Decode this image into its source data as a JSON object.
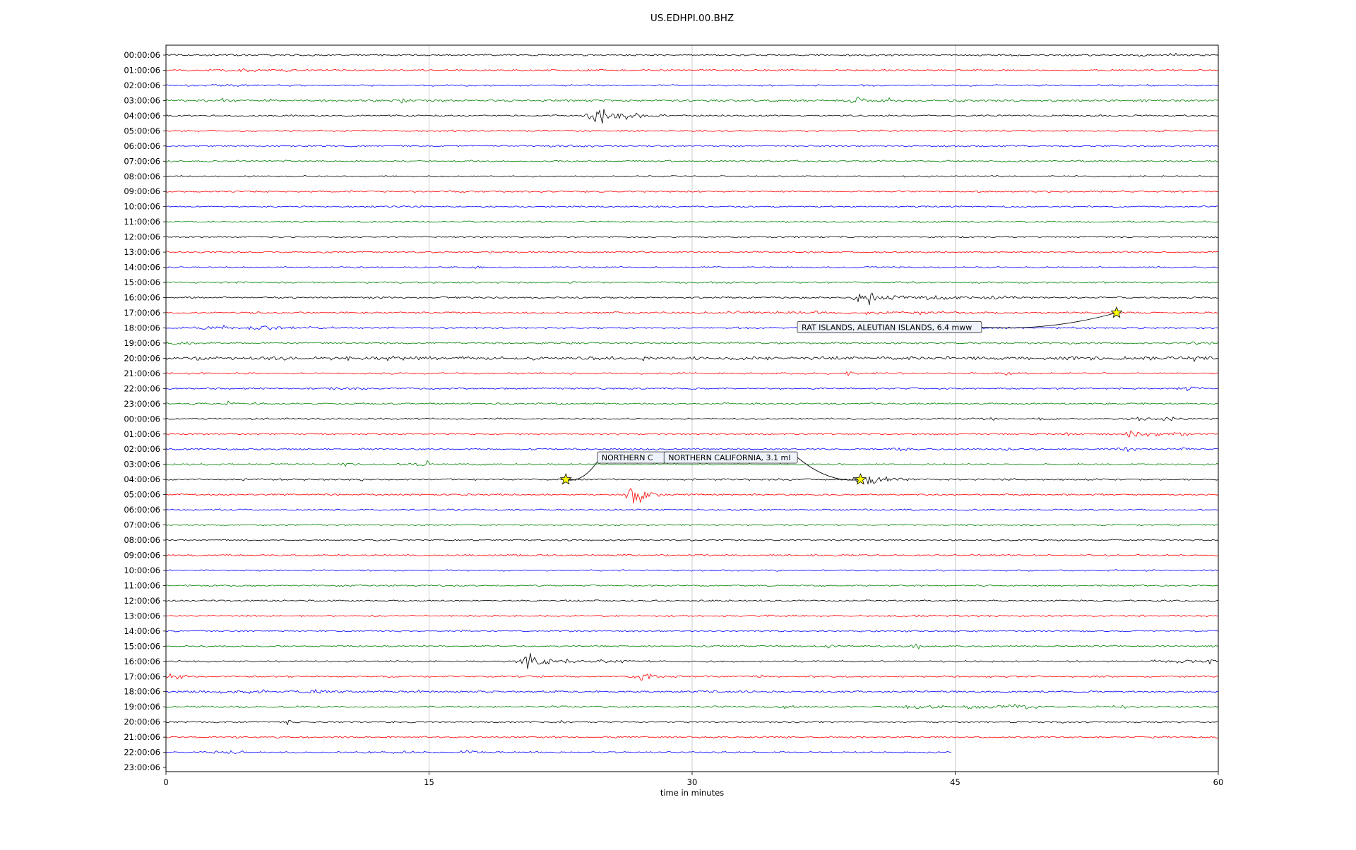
{
  "title": "US.EDHPI.00.BHZ",
  "xlabel": "time in minutes",
  "chart_data": {
    "type": "line",
    "subtype": "helicorder-dayplot",
    "station": "US.EDHPI.00.BHZ",
    "x_range": [
      0,
      60
    ],
    "x_ticks": [
      0,
      15,
      30,
      45,
      60
    ],
    "grid_minutes": [
      15,
      30,
      45
    ],
    "color_cycle": [
      "#000000",
      "#ff0000",
      "#0000ff",
      "#008000"
    ],
    "grid_color": "#c0c0c0",
    "star_color": "#ffff00",
    "rows": [
      {
        "label": "00:00:06",
        "color": "#000000",
        "noise": 1.0,
        "events": [
          [
            57.5,
            2.5,
            0.3,
            "s"
          ],
          [
            55.8,
            1.8,
            0.3,
            "s"
          ]
        ]
      },
      {
        "label": "01:00:06",
        "color": "#ff0000",
        "noise": 1.0,
        "events": [
          [
            4.5,
            2.0,
            1.5,
            "b"
          ],
          [
            7.0,
            1.5,
            0.8,
            "b"
          ]
        ]
      },
      {
        "label": "02:00:06",
        "color": "#0000ff",
        "noise": 1.0,
        "events": [
          [
            3.5,
            1.8,
            1.2,
            "b"
          ]
        ]
      },
      {
        "label": "03:00:06",
        "color": "#008000",
        "noise": 1.3,
        "events": [
          [
            3.4,
            2.5,
            0.3,
            "s"
          ],
          [
            5.9,
            2.5,
            0.3,
            "s"
          ],
          [
            13.7,
            4.0,
            0.25,
            "s"
          ],
          [
            25.0,
            2.0,
            0.5,
            "b"
          ],
          [
            39.4,
            5.0,
            0.3,
            "s"
          ],
          [
            41.5,
            2.5,
            0.8,
            "b"
          ],
          [
            50.0,
            2.0,
            0.4,
            "s"
          ],
          [
            56.0,
            1.8,
            0.3,
            "s"
          ]
        ]
      },
      {
        "label": "04:00:06",
        "color": "#000000",
        "noise": 1.0,
        "events": [
          [
            24.6,
            12.0,
            0.4,
            "s"
          ],
          [
            25.3,
            6.0,
            0.9,
            "b"
          ],
          [
            26.5,
            2.5,
            1.5,
            "b"
          ]
        ]
      },
      {
        "label": "05:00:06",
        "color": "#ff0000",
        "noise": 1.0,
        "events": []
      },
      {
        "label": "06:00:06",
        "color": "#0000ff",
        "noise": 0.95,
        "events": [
          [
            23.5,
            1.5,
            1.0,
            "b"
          ]
        ]
      },
      {
        "label": "07:00:06",
        "color": "#008000",
        "noise": 1.0,
        "events": []
      },
      {
        "label": "08:00:06",
        "color": "#000000",
        "noise": 0.9,
        "events": []
      },
      {
        "label": "09:00:06",
        "color": "#ff0000",
        "noise": 1.0,
        "events": []
      },
      {
        "label": "10:00:06",
        "color": "#0000ff",
        "noise": 0.9,
        "events": []
      },
      {
        "label": "11:00:06",
        "color": "#008000",
        "noise": 0.95,
        "events": []
      },
      {
        "label": "12:00:06",
        "color": "#000000",
        "noise": 0.9,
        "events": []
      },
      {
        "label": "13:00:06",
        "color": "#ff0000",
        "noise": 1.0,
        "events": []
      },
      {
        "label": "14:00:06",
        "color": "#0000ff",
        "noise": 0.9,
        "events": [
          [
            17.8,
            3.0,
            0.15,
            "s"
          ]
        ]
      },
      {
        "label": "15:00:06",
        "color": "#008000",
        "noise": 1.0,
        "events": []
      },
      {
        "label": "16:00:06",
        "color": "#000000",
        "noise": 1.0,
        "events": [
          [
            39.9,
            12.0,
            0.35,
            "s"
          ],
          [
            41.2,
            4.0,
            1.2,
            "b"
          ],
          [
            44.0,
            2.2,
            2.5,
            "b"
          ],
          [
            48.0,
            1.8,
            2.0,
            "b"
          ]
        ]
      },
      {
        "label": "17:00:06",
        "color": "#ff0000",
        "noise": 1.05,
        "events": [
          [
            33.5,
            2.0,
            1.5,
            "b"
          ],
          [
            37.0,
            2.2,
            1.5,
            "b"
          ],
          [
            40.5,
            2.0,
            1.0,
            "b"
          ],
          [
            43.5,
            2.2,
            1.5,
            "b"
          ]
        ]
      },
      {
        "label": "18:00:06",
        "color": "#0000ff",
        "noise": 1.1,
        "events": [
          [
            3.5,
            2.8,
            1.5,
            "b"
          ],
          [
            6.5,
            2.2,
            1.2,
            "b"
          ],
          [
            9.0,
            1.8,
            0.8,
            "b"
          ]
        ]
      },
      {
        "label": "19:00:06",
        "color": "#008000",
        "noise": 1.05,
        "events": [
          [
            0.8,
            2.0,
            1.0,
            "b"
          ],
          [
            59.0,
            1.8,
            0.5,
            "b"
          ]
        ]
      },
      {
        "label": "20:00:06",
        "color": "#000000",
        "noise": 1.9,
        "events": [
          [
            1.0,
            2.5,
            1.0,
            "b"
          ],
          [
            11.5,
            2.5,
            1.5,
            "b"
          ],
          [
            14.0,
            2.0,
            1.0,
            "b"
          ],
          [
            26.5,
            2.0,
            0.8,
            "b"
          ],
          [
            35.5,
            2.2,
            0.4,
            "s"
          ],
          [
            44.0,
            1.8,
            0.8,
            "b"
          ],
          [
            52.0,
            2.0,
            0.8,
            "b"
          ],
          [
            58.5,
            2.5,
            0.8,
            "b"
          ]
        ]
      },
      {
        "label": "21:00:06",
        "color": "#ff0000",
        "noise": 1.0,
        "events": [
          [
            39.0,
            3.0,
            0.3,
            "s"
          ],
          [
            48.0,
            2.2,
            0.3,
            "s"
          ]
        ]
      },
      {
        "label": "22:00:06",
        "color": "#0000ff",
        "noise": 1.0,
        "events": [
          [
            10.0,
            2.0,
            1.0,
            "b"
          ],
          [
            58.5,
            3.0,
            0.7,
            "b"
          ]
        ]
      },
      {
        "label": "23:00:06",
        "color": "#008000",
        "noise": 1.0,
        "events": [
          [
            3.5,
            3.0,
            0.3,
            "s"
          ],
          [
            5.5,
            2.5,
            0.3,
            "s"
          ]
        ]
      },
      {
        "label": "00:00:06",
        "color": "#000000",
        "noise": 1.0,
        "events": [
          [
            47.0,
            2.5,
            0.3,
            "s"
          ],
          [
            50.0,
            2.0,
            0.3,
            "s"
          ],
          [
            55.5,
            3.0,
            0.5,
            "b"
          ],
          [
            57.0,
            2.5,
            0.4,
            "s"
          ]
        ]
      },
      {
        "label": "01:00:06",
        "color": "#ff0000",
        "noise": 1.0,
        "events": [
          [
            51.5,
            2.5,
            0.3,
            "s"
          ],
          [
            55.0,
            5.0,
            0.4,
            "s"
          ],
          [
            56.5,
            3.5,
            0.7,
            "b"
          ],
          [
            58.0,
            2.5,
            0.5,
            "b"
          ]
        ]
      },
      {
        "label": "02:00:06",
        "color": "#0000ff",
        "noise": 1.0,
        "events": [
          [
            42.0,
            3.5,
            0.3,
            "s"
          ],
          [
            46.0,
            2.5,
            0.4,
            "s"
          ],
          [
            48.0,
            3.0,
            0.3,
            "s"
          ],
          [
            55.0,
            3.5,
            0.4,
            "s"
          ],
          [
            58.0,
            2.0,
            0.3,
            "s"
          ]
        ]
      },
      {
        "label": "03:00:06",
        "color": "#008000",
        "noise": 1.0,
        "events": [
          [
            10.3,
            2.0,
            0.3,
            "s"
          ],
          [
            14.8,
            5.5,
            0.35,
            "s"
          ]
        ]
      },
      {
        "label": "04:00:06",
        "color": "#000000",
        "noise": 1.0,
        "events": [
          [
            11.5,
            1.8,
            0.3,
            "s"
          ],
          [
            40.0,
            12.0,
            0.5,
            "s"
          ],
          [
            40.8,
            5.0,
            1.0,
            "b"
          ],
          [
            42.0,
            2.0,
            1.5,
            "b"
          ]
        ]
      },
      {
        "label": "05:00:06",
        "color": "#ff0000",
        "noise": 1.0,
        "events": [
          [
            26.8,
            11.0,
            0.45,
            "s"
          ],
          [
            27.5,
            3.5,
            0.8,
            "b"
          ]
        ]
      },
      {
        "label": "06:00:06",
        "color": "#0000ff",
        "noise": 0.9,
        "events": []
      },
      {
        "label": "07:00:06",
        "color": "#008000",
        "noise": 0.95,
        "events": []
      },
      {
        "label": "08:00:06",
        "color": "#000000",
        "noise": 0.9,
        "events": []
      },
      {
        "label": "09:00:06",
        "color": "#ff0000",
        "noise": 1.0,
        "events": []
      },
      {
        "label": "10:00:06",
        "color": "#0000ff",
        "noise": 0.9,
        "events": []
      },
      {
        "label": "11:00:06",
        "color": "#008000",
        "noise": 0.95,
        "events": []
      },
      {
        "label": "12:00:06",
        "color": "#000000",
        "noise": 0.9,
        "events": []
      },
      {
        "label": "13:00:06",
        "color": "#ff0000",
        "noise": 1.0,
        "events": []
      },
      {
        "label": "14:00:06",
        "color": "#0000ff",
        "noise": 0.9,
        "events": []
      },
      {
        "label": "15:00:06",
        "color": "#008000",
        "noise": 1.0,
        "events": [
          [
            37.8,
            2.8,
            0.3,
            "s"
          ],
          [
            42.7,
            3.2,
            0.35,
            "s"
          ]
        ]
      },
      {
        "label": "16:00:06",
        "color": "#000000",
        "noise": 1.0,
        "events": [
          [
            20.7,
            10.0,
            0.35,
            "s"
          ],
          [
            21.8,
            3.5,
            1.2,
            "b"
          ],
          [
            25.0,
            2.0,
            2.0,
            "b"
          ],
          [
            57.5,
            3.0,
            1.0,
            "b"
          ],
          [
            59.5,
            3.5,
            0.5,
            "b"
          ]
        ]
      },
      {
        "label": "17:00:06",
        "color": "#ff0000",
        "noise": 1.0,
        "events": [
          [
            0.7,
            3.5,
            0.5,
            "b"
          ],
          [
            27.3,
            6.0,
            0.5,
            "b"
          ],
          [
            34.0,
            1.8,
            0.8,
            "b"
          ],
          [
            47.0,
            1.8,
            0.5,
            "b"
          ]
        ]
      },
      {
        "label": "18:00:06",
        "color": "#0000ff",
        "noise": 1.15,
        "events": [
          [
            4.5,
            2.5,
            1.5,
            "b"
          ],
          [
            8.5,
            2.5,
            1.2,
            "b"
          ],
          [
            13.5,
            2.5,
            0.8,
            "b"
          ],
          [
            22.5,
            2.0,
            0.4,
            "s"
          ],
          [
            30.5,
            1.8,
            0.5,
            "b"
          ]
        ]
      },
      {
        "label": "19:00:06",
        "color": "#008000",
        "noise": 1.05,
        "events": [
          [
            35.5,
            2.0,
            0.5,
            "b"
          ],
          [
            43.0,
            2.5,
            1.0,
            "b"
          ],
          [
            46.0,
            2.5,
            0.8,
            "b"
          ],
          [
            48.5,
            4.0,
            1.0,
            "b"
          ],
          [
            54.5,
            2.2,
            0.3,
            "s"
          ]
        ]
      },
      {
        "label": "20:00:06",
        "color": "#000000",
        "noise": 1.0,
        "events": [
          [
            7.0,
            3.5,
            0.25,
            "s"
          ],
          [
            22.5,
            2.5,
            0.35,
            "s"
          ],
          [
            51.5,
            2.2,
            0.3,
            "s"
          ]
        ]
      },
      {
        "label": "21:00:06",
        "color": "#ff0000",
        "noise": 1.0,
        "events": []
      },
      {
        "label": "22:00:06",
        "color": "#0000ff",
        "noise": 1.0,
        "end": 44.8,
        "events": [
          [
            4.0,
            2.2,
            0.8,
            "b"
          ],
          [
            14.0,
            2.2,
            0.7,
            "b"
          ],
          [
            17.0,
            2.5,
            0.7,
            "b"
          ]
        ]
      },
      {
        "label": "23:00:06",
        "color": "#008000",
        "noise": 1.0,
        "trace": false,
        "events": []
      }
    ],
    "markers": [
      {
        "label": "NORTHERN C",
        "truncated": true,
        "box": {
          "minute": 24.6,
          "row": 26.55,
          "width": 130
        },
        "stars": [
          {
            "minute": 22.8,
            "row": 28
          }
        ]
      },
      {
        "label": "NORTHERN CALIFORNIA, 3.1 ml",
        "box": {
          "minute": 28.4,
          "row": 26.55
        },
        "stars": [
          {
            "minute": 39.6,
            "row": 28
          }
        ]
      },
      {
        "label": "RAT ISLANDS, ALEUTIAN ISLANDS, 6.4 mww",
        "box": {
          "minute": 36.0,
          "row": 17.95
        },
        "stars": [
          {
            "minute": 54.2,
            "row": 17
          }
        ]
      }
    ]
  }
}
